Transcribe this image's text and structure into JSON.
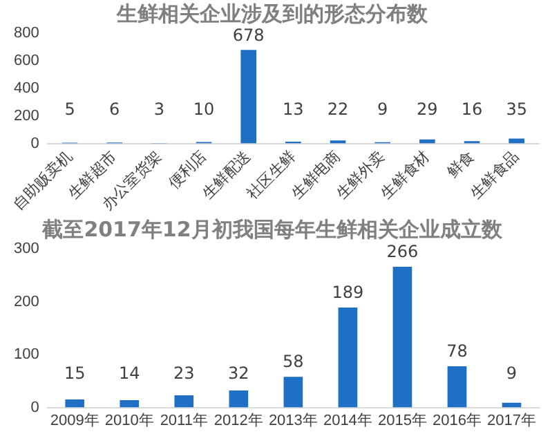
{
  "chart_data": [
    {
      "type": "bar",
      "title": "生鲜相关企业涉及到的形态分布数",
      "categories": [
        "自助贩卖机",
        "生鲜超市",
        "办公室货架",
        "便利店",
        "生鲜配送",
        "社区生鲜",
        "生鲜电商",
        "生鲜外卖",
        "生鲜食材",
        "鲜食",
        "生鲜食品"
      ],
      "values": [
        5,
        6,
        3,
        10,
        678,
        13,
        22,
        9,
        29,
        16,
        35
      ],
      "color": "#1f6fc5",
      "ylim": [
        0,
        800
      ],
      "yticks": [
        0,
        200,
        400,
        600,
        800
      ],
      "grid": false,
      "data_labels": true
    },
    {
      "type": "bar",
      "title": "截至2017年12月初我国每年生鲜相关企业成立数",
      "categories": [
        "2009年",
        "2010年",
        "2011年",
        "2012年",
        "2013年",
        "2014年",
        "2015年",
        "2016年",
        "2017年"
      ],
      "values": [
        15,
        14,
        23,
        32,
        58,
        189,
        266,
        78,
        9
      ],
      "color": "#1f6fc5",
      "ylim": [
        0,
        300
      ],
      "yticks": [
        0,
        100,
        200,
        300
      ],
      "grid": false,
      "data_labels": true
    }
  ]
}
